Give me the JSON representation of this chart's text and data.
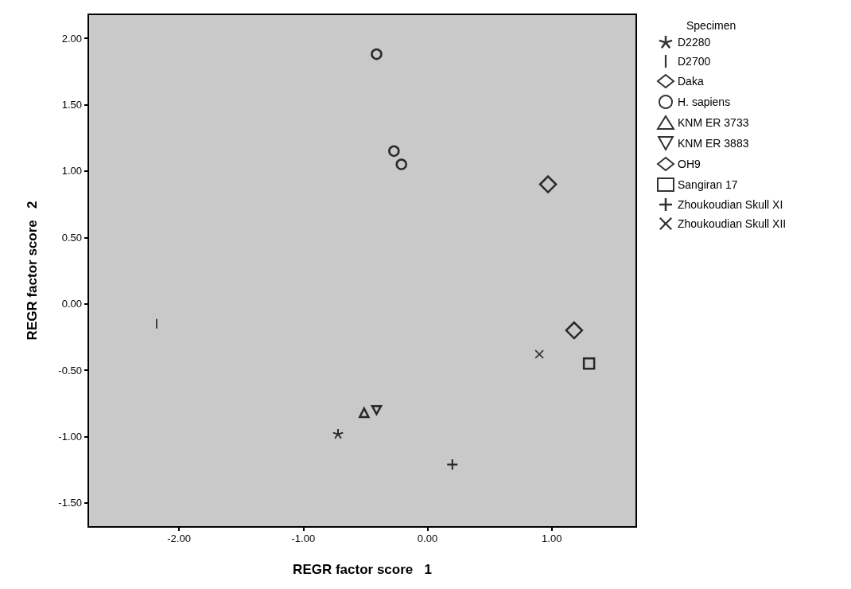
{
  "chart_data": {
    "type": "scatter",
    "xlabel": "REGR factor score   1",
    "ylabel": "REGR factor score   2",
    "legend_title": "Specimen",
    "legend": "right",
    "xlim": [
      -2.73,
      1.68
    ],
    "xticks": [
      {
        "value": -2,
        "label": "-2.00"
      },
      {
        "value": -1,
        "label": "-1.00"
      },
      {
        "value": 0,
        "label": "0.00"
      },
      {
        "value": 1,
        "label": "1.00"
      }
    ],
    "ylim": [
      -1.68,
      2.18
    ],
    "yticks": [
      {
        "value": -1.5,
        "label": "-1.50"
      },
      {
        "value": -1,
        "label": "-1.00"
      },
      {
        "value": -0.5,
        "label": "-0.50"
      },
      {
        "value": 0,
        "label": "0.00"
      },
      {
        "value": 0.5,
        "label": "0.50"
      },
      {
        "value": 1,
        "label": "1.00"
      },
      {
        "value": 1.5,
        "label": "1.50"
      },
      {
        "value": 2,
        "label": "2.00"
      }
    ],
    "grid": false,
    "series": [
      {
        "name": "D2280",
        "color": "#000000",
        "marker": "star",
        "x": [
          -0.72
        ],
        "values": [
          -0.98
        ]
      },
      {
        "name": "D2700",
        "color": "#000000",
        "x": [
          -2.18
        ],
        "values": [
          -0.15
        ]
      },
      {
        "name": "Daka",
        "color": "#000000",
        "marker": "diamond",
        "x": [
          0.97
        ],
        "values": [
          0.9
        ]
      },
      {
        "name": "H. sapiens",
        "color": "#000000",
        "marker": "circle",
        "x": [
          -0.41,
          -0.27,
          -0.21
        ],
        "values": [
          1.88,
          1.15,
          1.05
        ]
      },
      {
        "name": "KNM ER 3733",
        "color": "#000000",
        "marker": "triangle",
        "x": [
          -0.51
        ],
        "values": [
          -0.82
        ]
      },
      {
        "name": "KNM ER 3883",
        "color": "#000000",
        "marker": "triangle-down",
        "x": [
          -0.41
        ],
        "values": [
          -0.8
        ]
      },
      {
        "name": "OH9",
        "color": "#000000",
        "marker": "diamond",
        "x": [
          1.18
        ],
        "values": [
          -0.2
        ]
      },
      {
        "name": "Sangiran 17",
        "color": "#000000",
        "marker": "square",
        "x": [
          1.3
        ],
        "values": [
          -0.45
        ]
      },
      {
        "name": "Zhoukoudian Skull XI",
        "color": "#000000",
        "marker": "plus",
        "x": [
          0.2
        ],
        "values": [
          -1.21
        ]
      },
      {
        "name": "Zhoukoudian Skull XII",
        "color": "#000000",
        "marker": "cross",
        "x": [
          0.9
        ],
        "values": [
          -0.38
        ]
      }
    ]
  }
}
